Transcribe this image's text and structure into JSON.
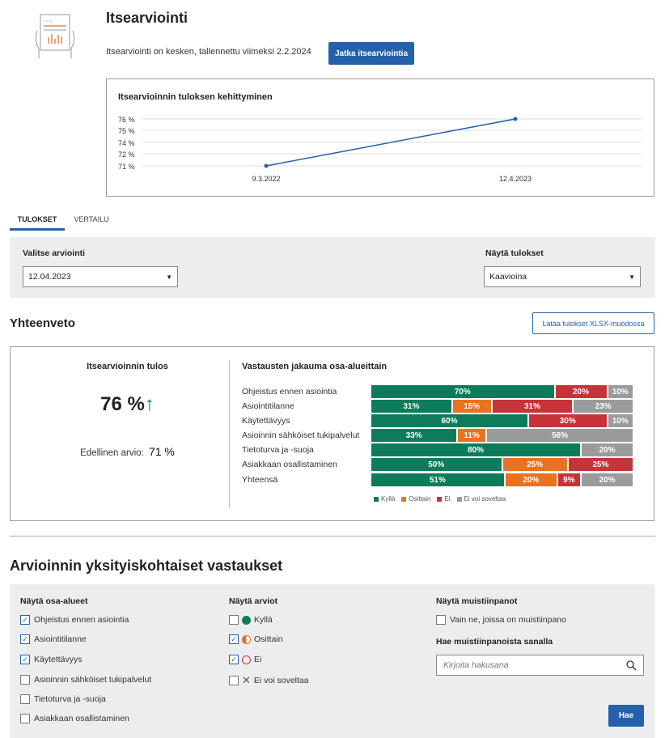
{
  "header": {
    "title": "Itsearviointi",
    "status": "Itsearviointi on kesken, tallennettu viimeksi 2.2.2024",
    "continue_button": "Jatka itsearviointia"
  },
  "progress_chart": {
    "chart_data": {
      "type": "line",
      "title": "Itsearvioinnin tuloksen kehittyminen",
      "x": [
        "9.3.2022",
        "12.4.2023"
      ],
      "values": [
        71,
        76
      ],
      "ytick_labels": [
        "76 %",
        "75 %",
        "74 %",
        "72 %",
        "71 %"
      ],
      "ylim": [
        71,
        76
      ],
      "grid": true,
      "color": "#2361ab"
    }
  },
  "tabs": [
    {
      "label": "TULOKSET",
      "active": true
    },
    {
      "label": "VERTAILU",
      "active": false
    }
  ],
  "filters": {
    "assessment_label": "Valitse arviointi",
    "assessment_value": "12.04.2023",
    "display_label": "Näytä tulokset",
    "display_value": "Kaavioina"
  },
  "summary": {
    "title": "Yhteenveto",
    "download_button": "Lataa tulokset XLSX-muodossa",
    "result_title": "Itsearvioinnin tulos",
    "result_value": "76 %",
    "trend_icon": "arrow-up",
    "previous_label": "Edellinen arvio:",
    "previous_value": "71 %"
  },
  "chart_data": {
    "type": "bar",
    "stacked": true,
    "orientation": "horizontal",
    "title": "Vastausten jakauma osa-alueittain",
    "categories": [
      "Ohjeistus ennen asiointia",
      "Asiointitilanne",
      "Käytettävyys",
      "Asioinnin sähköiset tukipalvelut",
      "Tietoturva ja -suoja",
      "Asiakkaan osallistaminen",
      "Yhteensä"
    ],
    "series": [
      {
        "name": "Kyllä",
        "color": "#0e7c5b",
        "values": [
          70,
          31,
          60,
          33,
          80,
          50,
          51
        ]
      },
      {
        "name": "Osittain",
        "color": "#e8721f",
        "values": [
          0,
          15,
          0,
          11,
          0,
          25,
          20
        ]
      },
      {
        "name": "Ei",
        "color": "#c6343a",
        "values": [
          20,
          31,
          30,
          0,
          0,
          25,
          9
        ]
      },
      {
        "name": "Ei voi soveltaa",
        "color": "#9b9b9b",
        "values": [
          10,
          23,
          10,
          56,
          20,
          0,
          20
        ]
      }
    ],
    "legend": "bottom"
  },
  "details": {
    "title": "Arvioinnin yksityiskohtaiset vastaukset",
    "areas_label": "Näytä osa-alueet",
    "areas": [
      {
        "label": "Ohjeistus ennen asiointia",
        "checked": true
      },
      {
        "label": "Asiointitilanne",
        "checked": true
      },
      {
        "label": "Käytettävyys",
        "checked": true
      },
      {
        "label": "Asioinnin sähköiset tukipalvelut",
        "checked": false
      },
      {
        "label": "Tietoturva ja -suoja",
        "checked": false
      },
      {
        "label": "Asiakkaan osallistaminen",
        "checked": false
      }
    ],
    "ratings_label": "Näytä arviot",
    "ratings": [
      {
        "label": "Kyllä",
        "checked": false,
        "icon": "filled-circle"
      },
      {
        "label": "Osittain",
        "checked": true,
        "icon": "half-circle"
      },
      {
        "label": "Ei",
        "checked": true,
        "icon": "empty-circle"
      },
      {
        "label": "Ei voi soveltaa",
        "checked": false,
        "icon": "x-mark"
      }
    ],
    "notes_label": "Näytä muistiinpanot",
    "notes_only": {
      "label": "Vain ne, joissa on muistiinpano",
      "checked": false
    },
    "search_label": "Hae muistiinpanoista sanalla",
    "search_placeholder": "Kirjoita hakusana",
    "search_button": "Hae"
  }
}
